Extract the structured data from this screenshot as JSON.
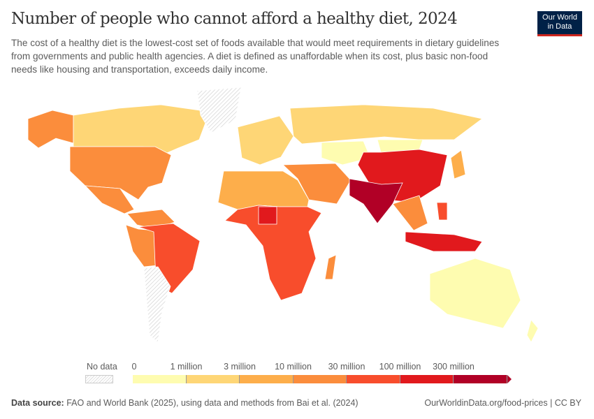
{
  "header": {
    "title": "Number of people who cannot afford a healthy diet, 2024",
    "subtitle": "The cost of a healthy diet is the lowest-cost set of foods available that would meet requirements in dietary guidelines from governments and public health agencies. A diet is defined as unaffordable when its cost, plus basic non-food needs like housing and transportation, exceeds daily income.",
    "logo_line1": "Our World",
    "logo_line2": "in Data"
  },
  "legend": {
    "no_data_label": "No data",
    "ticks": [
      "0",
      "1 million",
      "3 million",
      "10 million",
      "30 million",
      "100 million",
      "300 million"
    ],
    "bins": [
      {
        "range": "0–1 million",
        "color": "#fefcb0"
      },
      {
        "range": "1–3 million",
        "color": "#fed676"
      },
      {
        "range": "3–10 million",
        "color": "#fdae4b"
      },
      {
        "range": "10–30 million",
        "color": "#fb8d3c"
      },
      {
        "range": "30–100 million",
        "color": "#f84d2c"
      },
      {
        "range": "100–300 million",
        "color": "#e1191d"
      },
      {
        "range": ">300 million",
        "color": "#b10026"
      }
    ]
  },
  "map_data": {
    "type": "choropleth",
    "year": 2024,
    "regions": [
      {
        "name": "Alaska (United States)",
        "bin": 3
      },
      {
        "name": "Canada",
        "bin": 1
      },
      {
        "name": "Greenland",
        "bin": null
      },
      {
        "name": "United States",
        "bin": 3
      },
      {
        "name": "Mexico",
        "bin": 3
      },
      {
        "name": "Colombia/Venezuela",
        "bin": 3
      },
      {
        "name": "Peru/Bolivia",
        "bin": 3
      },
      {
        "name": "Brazil",
        "bin": 4
      },
      {
        "name": "Argentina",
        "bin": null
      },
      {
        "name": "Europe",
        "bin": 1
      },
      {
        "name": "Russia",
        "bin": 1
      },
      {
        "name": "Kazakhstan",
        "bin": 0
      },
      {
        "name": "Mongolia",
        "bin": 0
      },
      {
        "name": "China",
        "bin": 5
      },
      {
        "name": "Middle East",
        "bin": 3
      },
      {
        "name": "India",
        "bin": 6
      },
      {
        "name": "North Africa",
        "bin": 2
      },
      {
        "name": "Sub-Saharan Africa",
        "bin": 4
      },
      {
        "name": "Nigeria",
        "bin": 5
      },
      {
        "name": "Madagascar",
        "bin": 3
      },
      {
        "name": "Southeast Asia",
        "bin": 3
      },
      {
        "name": "Indonesia",
        "bin": 5
      },
      {
        "name": "Philippines",
        "bin": 4
      },
      {
        "name": "Japan",
        "bin": 2
      },
      {
        "name": "Australia",
        "bin": 0
      },
      {
        "name": "New Zealand",
        "bin": 0
      }
    ]
  },
  "footer": {
    "source_label": "Data source:",
    "source_text": "FAO and World Bank (2025), using data and methods from Bai et al. (2024)",
    "url_license": "OurWorldinData.org/food-prices | CC BY"
  }
}
